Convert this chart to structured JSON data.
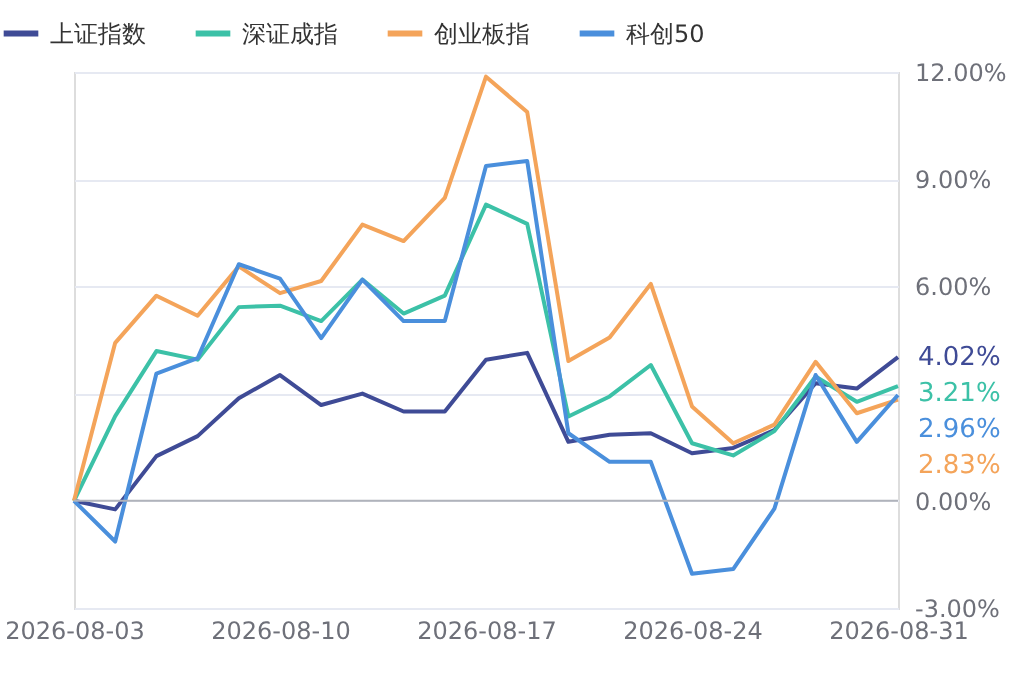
{
  "chart_data": {
    "type": "line",
    "categories": [
      "2026-08-03",
      null,
      null,
      null,
      null,
      "2026-08-10",
      null,
      null,
      null,
      null,
      "2026-08-17",
      null,
      null,
      null,
      null,
      "2026-08-24",
      null,
      null,
      null,
      null,
      "2026-08-31"
    ],
    "series": [
      {
        "name": "上证指数",
        "color": "#3f4b96",
        "values": [
          0,
          -0.24,
          1.25,
          1.81,
          2.87,
          3.52,
          2.68,
          3.0,
          2.5,
          2.5,
          3.95,
          4.14,
          1.65,
          1.85,
          1.89,
          1.33,
          1.48,
          1.98,
          3.29,
          3.14,
          4.02
        ],
        "value_labels": [
          null,
          null,
          null,
          null,
          null,
          null,
          null,
          null,
          null,
          null,
          null,
          null,
          null,
          null,
          null,
          null,
          null,
          null,
          null,
          null,
          "4.02%"
        ]
      },
      {
        "name": "深证成指",
        "color": "#3cc1a7",
        "values": [
          0,
          2.37,
          4.19,
          3.95,
          5.42,
          5.46,
          5.03,
          6.19,
          5.24,
          5.74,
          8.29,
          7.75,
          2.36,
          2.92,
          3.8,
          1.61,
          1.27,
          1.95,
          3.48,
          2.77,
          3.21
        ],
        "value_labels": [
          null,
          null,
          null,
          null,
          null,
          null,
          null,
          null,
          null,
          null,
          null,
          null,
          null,
          null,
          null,
          null,
          null,
          null,
          null,
          null,
          "3.21%"
        ]
      },
      {
        "name": "创业板指",
        "color": "#f4a45a",
        "values": [
          0,
          4.42,
          5.74,
          5.18,
          6.56,
          5.81,
          6.15,
          7.73,
          7.27,
          8.48,
          11.87,
          10.88,
          3.91,
          4.57,
          6.07,
          2.64,
          1.61,
          2.13,
          3.89,
          2.45,
          2.83
        ],
        "value_labels": [
          null,
          null,
          null,
          null,
          null,
          null,
          null,
          null,
          null,
          null,
          null,
          null,
          null,
          null,
          null,
          null,
          null,
          null,
          null,
          null,
          "2.83%"
        ]
      },
      {
        "name": "科创50",
        "color": "#4a8fdc",
        "values": [
          0,
          -1.14,
          3.56,
          3.99,
          6.62,
          6.22,
          4.55,
          6.19,
          5.03,
          5.03,
          9.37,
          9.51,
          1.89,
          1.09,
          1.09,
          -2.04,
          -1.91,
          -0.22,
          3.52,
          1.65,
          2.96
        ],
        "value_labels": [
          null,
          null,
          null,
          null,
          null,
          null,
          null,
          null,
          null,
          null,
          null,
          null,
          null,
          null,
          null,
          null,
          null,
          null,
          null,
          null,
          "2.96%"
        ]
      }
    ],
    "ylim": [
      -3,
      12
    ],
    "yticks": [
      {
        "value": -3,
        "label": "-3.00%"
      },
      {
        "value": 0,
        "label": "0.00%"
      },
      {
        "value": 3,
        "label": null
      },
      {
        "value": 6,
        "label": "6.00%"
      },
      {
        "value": 9,
        "label": "9.00%"
      },
      {
        "value": 12,
        "label": "12.00%"
      }
    ],
    "ref_lines": [
      {
        "axis": "y",
        "value": 0,
        "color": "#b0b3bb"
      }
    ],
    "grid": "y",
    "legend": "top left",
    "marker": "none",
    "line_style": "solid"
  }
}
